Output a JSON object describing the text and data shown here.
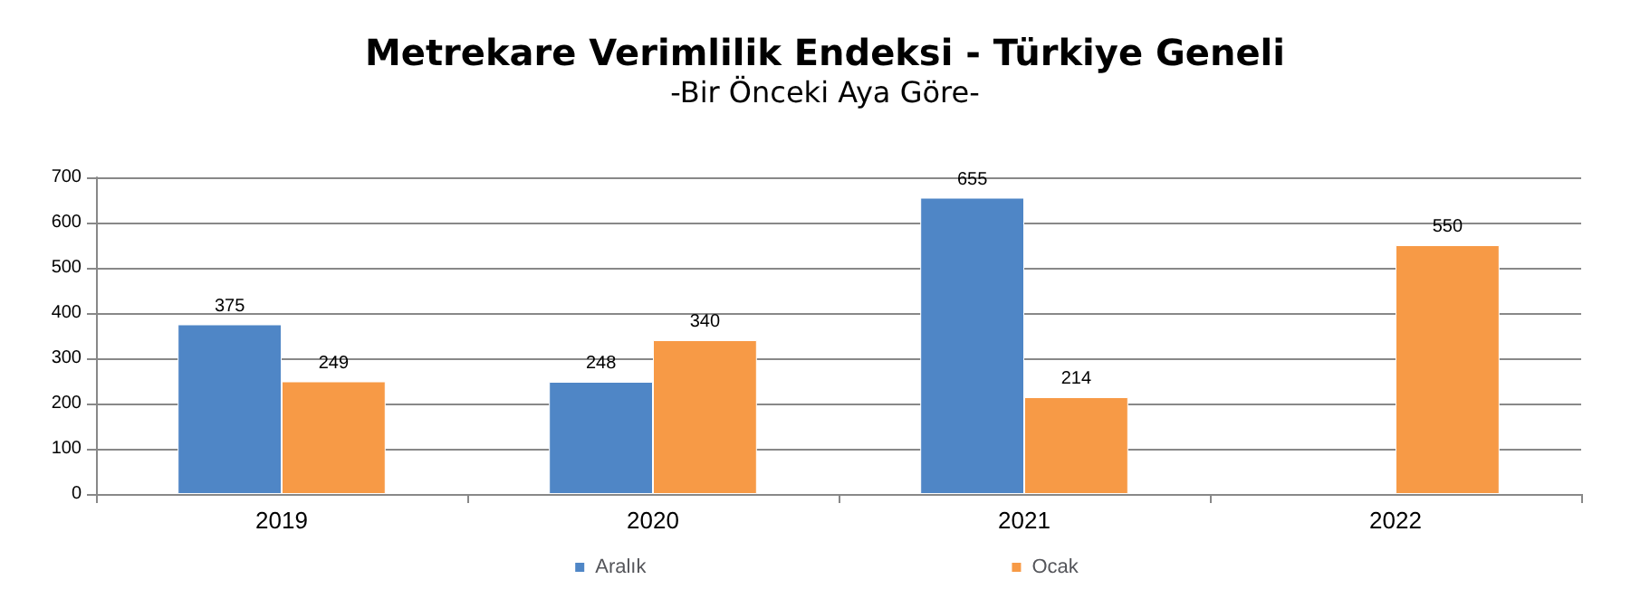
{
  "chart_data": {
    "type": "bar",
    "title": "Metrekare Verimlilik Endeksi - Türkiye Geneli",
    "subtitle": "-Bir Önceki Aya Göre-",
    "categories": [
      "2019",
      "2020",
      "2021",
      "2022"
    ],
    "series": [
      {
        "name": "Aralık",
        "color": "#4f86c6",
        "values": [
          375,
          248,
          655,
          null
        ]
      },
      {
        "name": "Ocak",
        "color": "#f79a46",
        "values": [
          249,
          340,
          214,
          550
        ]
      }
    ],
    "ylim": [
      0,
      700
    ],
    "yticks": [
      0,
      100,
      200,
      300,
      400,
      500,
      600,
      700
    ],
    "grid": "y",
    "legend": "bottom",
    "data_labels": true
  }
}
